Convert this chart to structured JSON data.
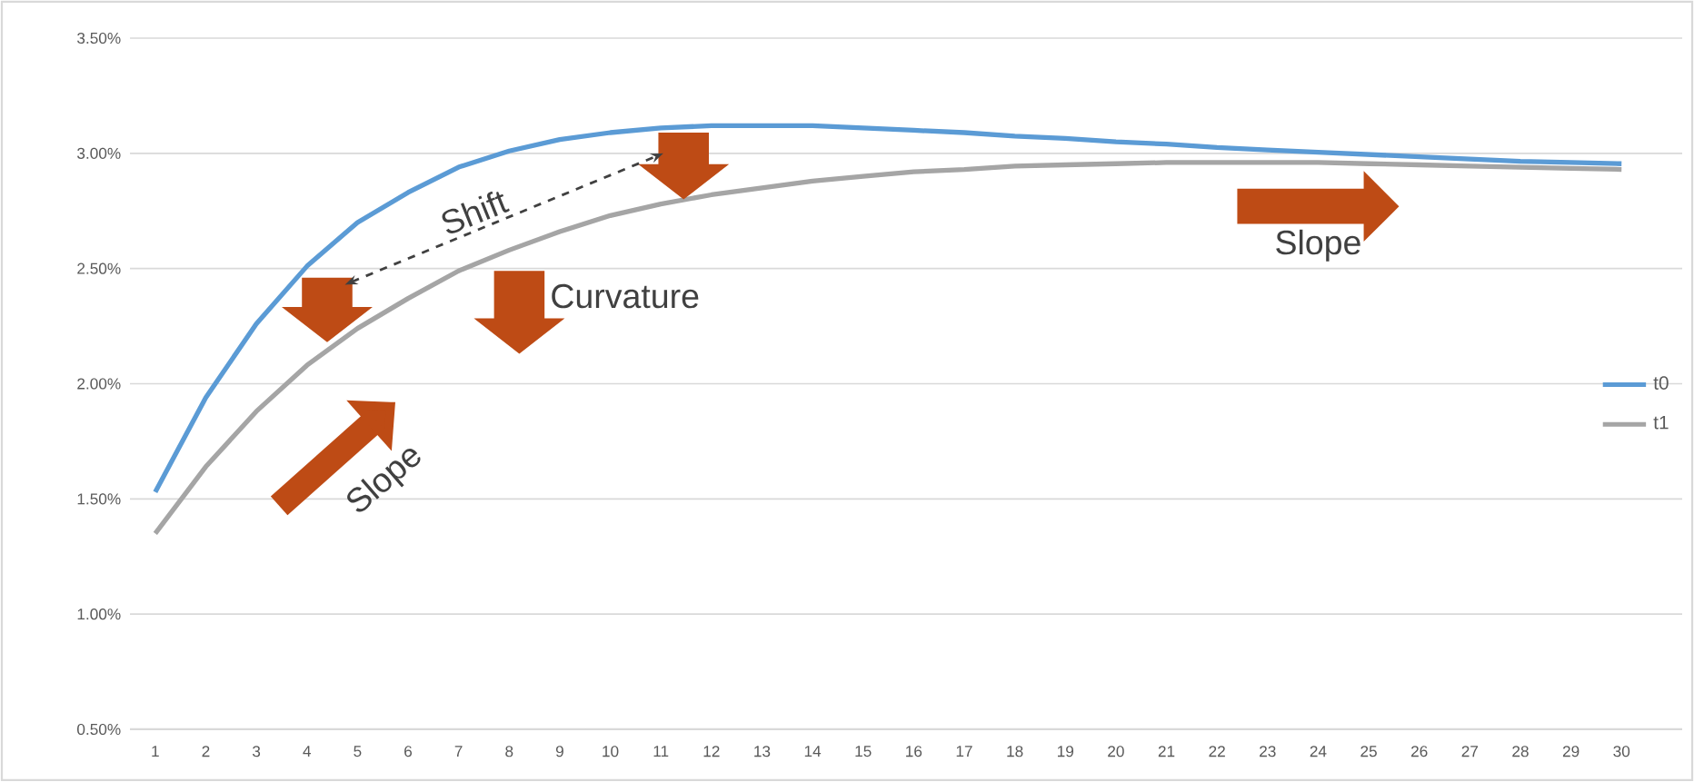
{
  "chart_data": {
    "type": "line",
    "categories": [
      "1",
      "2",
      "3",
      "4",
      "5",
      "6",
      "7",
      "8",
      "9",
      "10",
      "11",
      "12",
      "13",
      "14",
      "15",
      "16",
      "17",
      "18",
      "19",
      "20",
      "21",
      "22",
      "23",
      "24",
      "25",
      "26",
      "27",
      "28",
      "29",
      "30"
    ],
    "series": [
      {
        "name": "t0",
        "color": "#5b9bd5",
        "values": [
          1.53,
          1.94,
          2.26,
          2.51,
          2.7,
          2.83,
          2.94,
          3.01,
          3.06,
          3.09,
          3.11,
          3.12,
          3.12,
          3.12,
          3.11,
          3.1,
          3.09,
          3.075,
          3.065,
          3.05,
          3.04,
          3.025,
          3.015,
          3.005,
          2.995,
          2.985,
          2.975,
          2.965,
          2.96,
          2.955
        ]
      },
      {
        "name": "t1",
        "color": "#a5a5a5",
        "values": [
          1.35,
          1.64,
          1.88,
          2.08,
          2.24,
          2.37,
          2.49,
          2.58,
          2.66,
          2.73,
          2.78,
          2.82,
          2.85,
          2.88,
          2.9,
          2.92,
          2.93,
          2.945,
          2.95,
          2.955,
          2.96,
          2.96,
          2.96,
          2.96,
          2.955,
          2.95,
          2.945,
          2.94,
          2.935,
          2.93
        ]
      }
    ],
    "ylim": [
      0.5,
      3.5
    ],
    "yticks": [
      {
        "value": 0.5,
        "label": "0.50%"
      },
      {
        "value": 1.0,
        "label": "1.00%"
      },
      {
        "value": 1.5,
        "label": "1.50%"
      },
      {
        "value": 2.0,
        "label": "2.00%"
      },
      {
        "value": 2.5,
        "label": "2.50%"
      },
      {
        "value": 3.0,
        "label": "3.00%"
      },
      {
        "value": 3.5,
        "label": "3.50%"
      }
    ],
    "grid": "y",
    "legend": "right",
    "marker": "none",
    "line_style": "solid",
    "annotations": [
      "Shift",
      "Curvature",
      "Slope",
      "Slope"
    ]
  }
}
